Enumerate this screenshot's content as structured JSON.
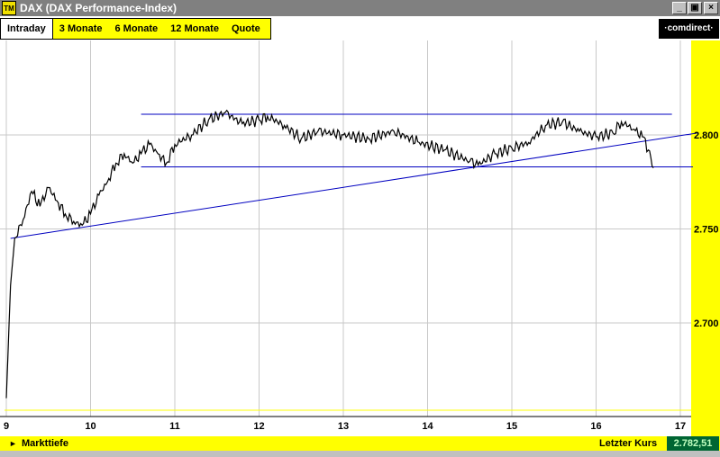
{
  "window": {
    "icon_text": "TM",
    "title": "DAX (DAX Performance-Index)",
    "minimize_glyph": "_",
    "maximize_glyph": "▣",
    "close_glyph": "×"
  },
  "tabs": [
    {
      "label": "Intraday",
      "active": true
    },
    {
      "label": "3 Monate",
      "active": false
    },
    {
      "label": "6 Monate",
      "active": false
    },
    {
      "label": "12 Monate",
      "active": false
    },
    {
      "label": "Quote",
      "active": false
    }
  ],
  "brand": {
    "logo_text": "·comdirect·"
  },
  "statusbar": {
    "markttiefe_label": "Markttiefe",
    "letzter_kurs_label": "Letzter Kurs",
    "letzter_kurs_value": "2.782,51"
  },
  "chart_data": {
    "type": "line",
    "x_ticks": [
      9,
      10,
      11,
      12,
      13,
      14,
      15,
      16,
      17
    ],
    "y_ticks": [
      {
        "value": 2700,
        "label": "2.700"
      },
      {
        "value": 2750,
        "label": "2.750"
      },
      {
        "value": 2800,
        "label": "2.800"
      }
    ],
    "xlim": [
      9,
      17.2
    ],
    "ylim": [
      2650,
      2850
    ],
    "grid": true,
    "baseline": 2658,
    "price": [
      [
        9.0,
        2660
      ],
      [
        9.05,
        2720
      ],
      [
        9.1,
        2745
      ],
      [
        9.2,
        2755
      ],
      [
        9.3,
        2770
      ],
      [
        9.4,
        2762
      ],
      [
        9.5,
        2772
      ],
      [
        9.6,
        2765
      ],
      [
        9.7,
        2758
      ],
      [
        9.8,
        2754
      ],
      [
        9.9,
        2752
      ],
      [
        10.0,
        2758
      ],
      [
        10.1,
        2768
      ],
      [
        10.2,
        2775
      ],
      [
        10.3,
        2785
      ],
      [
        10.4,
        2790
      ],
      [
        10.5,
        2785
      ],
      [
        10.6,
        2790
      ],
      [
        10.7,
        2795
      ],
      [
        10.8,
        2790
      ],
      [
        10.9,
        2785
      ],
      [
        11.0,
        2795
      ],
      [
        11.2,
        2800
      ],
      [
        11.4,
        2808
      ],
      [
        11.6,
        2812
      ],
      [
        11.8,
        2806
      ],
      [
        12.0,
        2808
      ],
      [
        12.1,
        2810
      ],
      [
        12.3,
        2805
      ],
      [
        12.5,
        2798
      ],
      [
        12.7,
        2802
      ],
      [
        13.0,
        2800
      ],
      [
        13.3,
        2798
      ],
      [
        13.6,
        2802
      ],
      [
        13.9,
        2796
      ],
      [
        14.2,
        2792
      ],
      [
        14.5,
        2786
      ],
      [
        14.6,
        2784
      ],
      [
        14.8,
        2790
      ],
      [
        15.0,
        2793
      ],
      [
        15.2,
        2796
      ],
      [
        15.4,
        2805
      ],
      [
        15.6,
        2807
      ],
      [
        15.8,
        2802
      ],
      [
        16.0,
        2799
      ],
      [
        16.2,
        2801
      ],
      [
        16.3,
        2807
      ],
      [
        16.45,
        2803
      ],
      [
        16.55,
        2799
      ],
      [
        16.62,
        2792
      ],
      [
        16.68,
        2782.51
      ]
    ],
    "trendlines": [
      {
        "from": [
          9.05,
          2745
        ],
        "to": [
          17.2,
          2801
        ]
      },
      {
        "from": [
          10.6,
          2811
        ],
        "to": [
          16.9,
          2811
        ]
      },
      {
        "from": [
          10.6,
          2783
        ],
        "to": [
          17.15,
          2783
        ]
      }
    ]
  }
}
